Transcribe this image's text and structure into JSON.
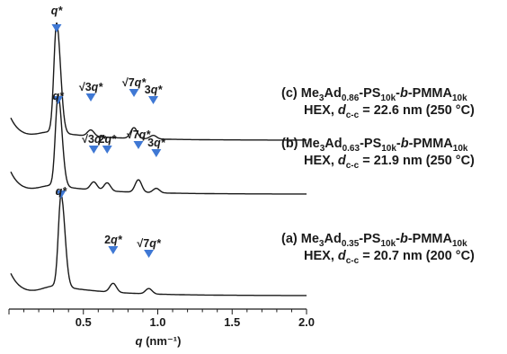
{
  "chart_data": {
    "type": "line",
    "xlabel": "q (nm⁻¹)",
    "xlim": [
      0.0,
      2.0
    ],
    "ylim": null,
    "grid": false,
    "legend": "none",
    "x_ticks": [
      "0.5",
      "1.0",
      "1.5",
      "2.0"
    ],
    "x_tick_values": [
      0.5,
      1.0,
      1.5,
      2.0
    ],
    "marker_color": "#3f78d4",
    "line_color": "#1a1a1a",
    "series": [
      {
        "id": "a",
        "label_line1": "(a) Me3Ad0.35-PS10k-b-PMMA10k",
        "label_line2": "HEX, dc-c = 20.7 nm (200 °C)",
        "label_parts_line1": [
          "(a) Me",
          "3",
          "Ad",
          "0.35",
          "-PS",
          "10k",
          "-",
          "b",
          "-PMMA",
          "10k"
        ],
        "label_parts_line2": [
          "HEX, ",
          "d",
          "c-c",
          " = 20.7 nm (200 °C)"
        ],
        "peaks": [
          {
            "label": "q*",
            "q": 0.35
          },
          {
            "label": "2q*",
            "q": 0.7
          },
          {
            "label": "√7q*",
            "q": 0.94
          }
        ]
      },
      {
        "id": "b",
        "label_line1": "(b) Me3Ad0.63-PS10k-b-PMMA10k",
        "label_line2": "HEX, dc-c = 21.9 nm (250 °C)",
        "label_parts_line1": [
          "(b) Me",
          "3",
          "Ad",
          "0.63",
          "-PS",
          "10k",
          "-",
          "b",
          "-PMMA",
          "10k"
        ],
        "label_parts_line2": [
          "HEX, ",
          "d",
          "c-c",
          " = 21.9 nm (250 °C)"
        ],
        "peaks": [
          {
            "label": "q*",
            "q": 0.33
          },
          {
            "label": "√3q*",
            "q": 0.57
          },
          {
            "label": "2q*",
            "q": 0.66
          },
          {
            "label": "√7q*",
            "q": 0.87
          },
          {
            "label": "3q*",
            "q": 0.99
          }
        ]
      },
      {
        "id": "c",
        "label_line1": "(c) Me3Ad0.86-PS10k-b-PMMA10k",
        "label_line2": "HEX, dc-c = 22.6 nm (250 °C)",
        "label_parts_line1": [
          "(c) Me",
          "3",
          "Ad",
          "0.86",
          "-PS",
          "10k",
          "-",
          "b",
          "-PMMA",
          "10k"
        ],
        "label_parts_line2": [
          "HEX, ",
          "d",
          "c-c",
          " = 22.6 nm (250 °C)"
        ],
        "peaks": [
          {
            "label": "q*",
            "q": 0.32
          },
          {
            "label": "√3q*",
            "q": 0.55
          },
          {
            "label": "√7q*",
            "q": 0.84
          },
          {
            "label": "3q*",
            "q": 0.97
          }
        ]
      }
    ]
  }
}
